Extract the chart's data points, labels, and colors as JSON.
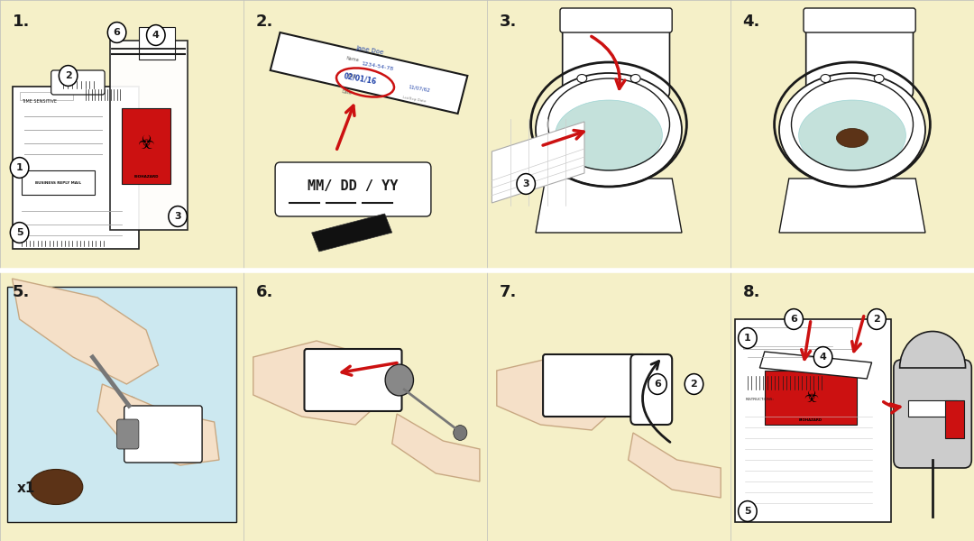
{
  "bg_color": "#f5f0c8",
  "white": "#ffffff",
  "red": "#cc1111",
  "dark": "#1a1a1a",
  "gray": "#888888",
  "light_gray": "#cccccc",
  "brown": "#5c3317",
  "teal": "#b0d8d0",
  "skin": "#f5e0c8",
  "skin_edge": "#c8a882",
  "blue_text": "#2244aa",
  "step_label_size": 13,
  "steps": [
    "1.",
    "2.",
    "3.",
    "4.",
    "5.",
    "6.",
    "7.",
    "8."
  ]
}
